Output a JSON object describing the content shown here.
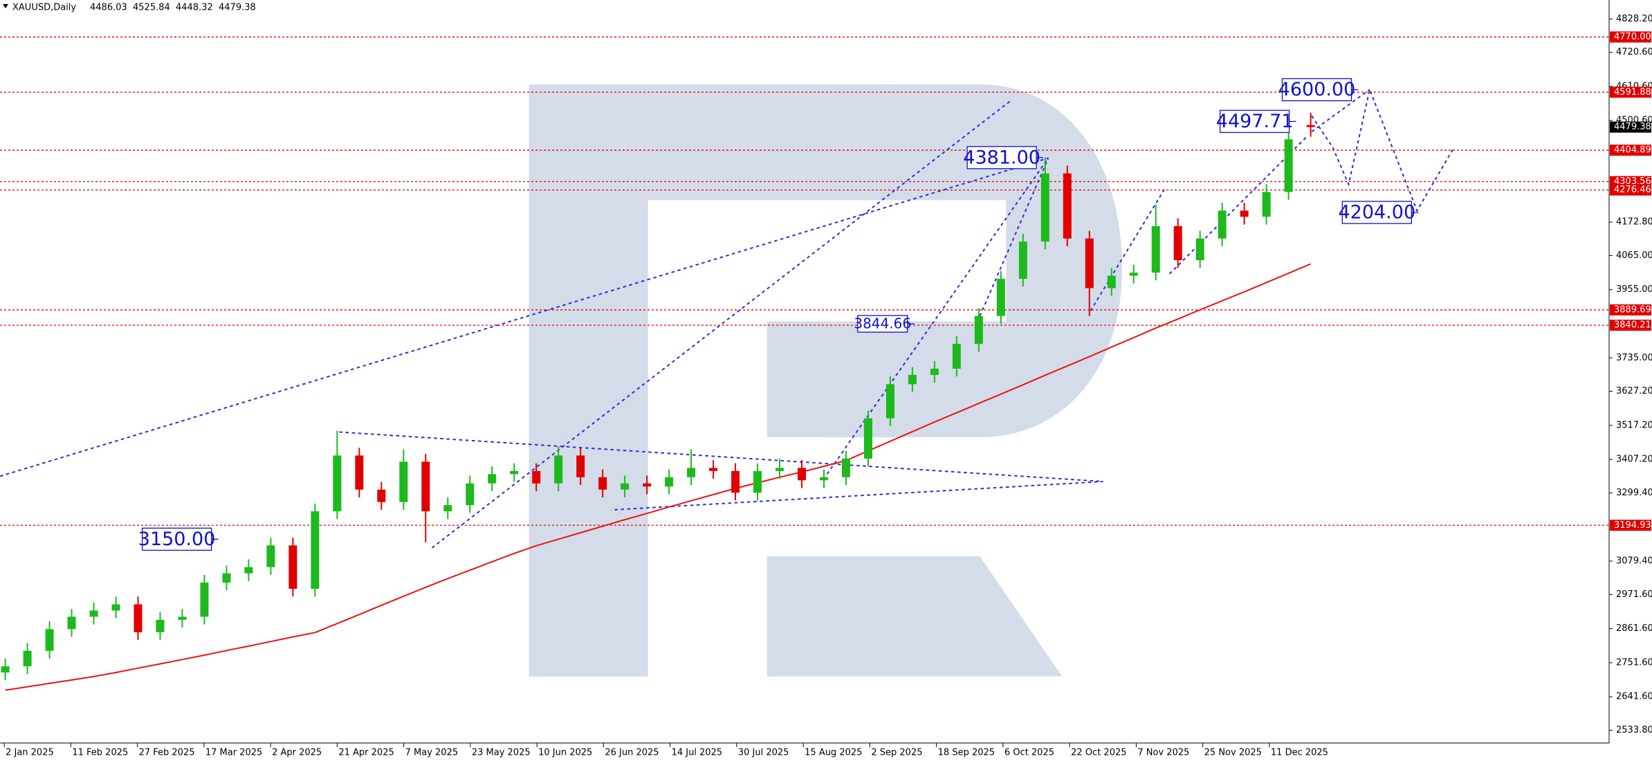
{
  "chart_data": {
    "type": "candlestick",
    "title": "XAUUSD,Daily",
    "categories": [
      "2 Jan 2025",
      "11 Feb 2025",
      "27 Feb 2025",
      "17 Mar 2025",
      "2 Apr 2025",
      "21 Apr 2025",
      "7 May 2025",
      "23 May 2025",
      "10 Jun 2025",
      "26 Jun 2025",
      "14 Jul 2025",
      "30 Jul 2025",
      "15 Aug 2025",
      "2 Sep 2025",
      "18 Sep 2025",
      "6 Oct 2025",
      "22 Oct 2025",
      "7 Nov 2025",
      "25 Nov 2025",
      "11 Dec 2025"
    ],
    "ohlc": [
      [
        2720,
        2765,
        2695,
        2740
      ],
      [
        2740,
        2815,
        2715,
        2790
      ],
      [
        2790,
        2885,
        2765,
        2860
      ],
      [
        2860,
        2925,
        2835,
        2900
      ],
      [
        2900,
        2945,
        2875,
        2920
      ],
      [
        2920,
        2965,
        2895,
        2940
      ],
      [
        2940,
        2965,
        2825,
        2850
      ],
      [
        2850,
        2915,
        2825,
        2890
      ],
      [
        2890,
        2925,
        2865,
        2900
      ],
      [
        2900,
        3035,
        2875,
        3010
      ],
      [
        3010,
        3065,
        2985,
        3040
      ],
      [
        3040,
        3085,
        3015,
        3060
      ],
      [
        3060,
        3155,
        3035,
        3130
      ],
      [
        3130,
        3155,
        2965,
        2990
      ],
      [
        2990,
        3265,
        2965,
        3240
      ],
      [
        3240,
        3500,
        3215,
        3420
      ],
      [
        3420,
        3445,
        3285,
        3310
      ],
      [
        3310,
        3335,
        3245,
        3270
      ],
      [
        3270,
        3440,
        3245,
        3400
      ],
      [
        3400,
        3425,
        3140,
        3240
      ],
      [
        3240,
        3285,
        3215,
        3260
      ],
      [
        3260,
        3355,
        3235,
        3330
      ],
      [
        3330,
        3385,
        3305,
        3360
      ],
      [
        3360,
        3395,
        3335,
        3370
      ],
      [
        3370,
        3395,
        3305,
        3330
      ],
      [
        3330,
        3450,
        3305,
        3420
      ],
      [
        3420,
        3445,
        3325,
        3350
      ],
      [
        3350,
        3375,
        3285,
        3310
      ],
      [
        3310,
        3355,
        3285,
        3330
      ],
      [
        3330,
        3355,
        3295,
        3320
      ],
      [
        3320,
        3375,
        3295,
        3350
      ],
      [
        3350,
        3440,
        3325,
        3380
      ],
      [
        3380,
        3405,
        3345,
        3370
      ],
      [
        3370,
        3395,
        3275,
        3300
      ],
      [
        3300,
        3395,
        3275,
        3370
      ],
      [
        3370,
        3410,
        3345,
        3380
      ],
      [
        3380,
        3405,
        3315,
        3340
      ],
      [
        3340,
        3375,
        3315,
        3350
      ],
      [
        3350,
        3435,
        3325,
        3410
      ],
      [
        3410,
        3565,
        3385,
        3540
      ],
      [
        3540,
        3675,
        3515,
        3650
      ],
      [
        3650,
        3705,
        3625,
        3680
      ],
      [
        3680,
        3725,
        3655,
        3700
      ],
      [
        3700,
        3805,
        3675,
        3780
      ],
      [
        3780,
        3895,
        3755,
        3870
      ],
      [
        3870,
        4015,
        3845,
        3990
      ],
      [
        3990,
        4135,
        3965,
        4110
      ],
      [
        4110,
        4381,
        4085,
        4330
      ],
      [
        4330,
        4355,
        4095,
        4120
      ],
      [
        4120,
        4145,
        3870,
        3960
      ],
      [
        3960,
        4025,
        3935,
        4000
      ],
      [
        4000,
        4035,
        3975,
        4010
      ],
      [
        4010,
        4230,
        3985,
        4160
      ],
      [
        4160,
        4185,
        4025,
        4050
      ],
      [
        4050,
        4145,
        4025,
        4120
      ],
      [
        4120,
        4235,
        4095,
        4210
      ],
      [
        4210,
        4235,
        4165,
        4190
      ],
      [
        4190,
        4295,
        4165,
        4270
      ],
      [
        4270,
        4465,
        4245,
        4440
      ],
      [
        4486.03,
        4525.84,
        4448.32,
        4479.38
      ]
    ],
    "ma": [
      2663,
      2674,
      2685,
      2696,
      2707,
      2720,
      2734,
      2748,
      2762,
      2776,
      2791,
      2805,
      2820,
      2835,
      2849,
      2878,
      2907,
      2937,
      2966,
      2995,
      3023,
      3050,
      3077,
      3104,
      3129,
      3150,
      3171,
      3192,
      3213,
      3233,
      3254,
      3274,
      3294,
      3314,
      3332,
      3350,
      3367,
      3385,
      3404,
      3435,
      3466,
      3497,
      3528,
      3558,
      3588,
      3618,
      3648,
      3679,
      3709,
      3739,
      3770,
      3800,
      3831,
      3860,
      3890,
      3919,
      3948,
      3978,
      4008,
      4038
    ],
    "up_color": "#1db91d",
    "down_color": "#e00000",
    "ma_color": "#ee1111",
    "level_color": "#e00000",
    "annotation_color": "#1010d0",
    "ylim": [
      2492.6,
      4889.3
    ],
    "yticks": [
      {
        "value": 4828.2,
        "label": "4828.20"
      },
      {
        "value": 4720.6,
        "label": "4720.60"
      },
      {
        "value": 4610.6,
        "label": "4610.60"
      },
      {
        "value": 4500.6,
        "label": "4500.60"
      },
      {
        "value": 4172.8,
        "label": "4172.80"
      },
      {
        "value": 4065,
        "label": "4065.00"
      },
      {
        "value": 3955,
        "label": "3955.00"
      },
      {
        "value": 3735,
        "label": "3735.00"
      },
      {
        "value": 3627.2,
        "label": "3627.20"
      },
      {
        "value": 3517.2,
        "label": "3517.20"
      },
      {
        "value": 3407.2,
        "label": "3407.20"
      },
      {
        "value": 3299.4,
        "label": "3299.40"
      },
      {
        "value": 3079.4,
        "label": "3079.40"
      },
      {
        "value": 2971.6,
        "label": "2971.60"
      },
      {
        "value": 2861.6,
        "label": "2861.60"
      },
      {
        "value": 2751.6,
        "label": "2751.60"
      },
      {
        "value": 2641.6,
        "label": "2641.60"
      },
      {
        "value": 2533.8,
        "label": "2533.80"
      }
    ],
    "levels": [
      {
        "value": 4770,
        "label": "4770.00"
      },
      {
        "value": 4591.88,
        "label": "4591.88"
      },
      {
        "value": 4404.89,
        "label": "4404.89"
      },
      {
        "value": 4303.56,
        "label": "4303.56"
      },
      {
        "value": 4276.46,
        "label": "4276.46"
      },
      {
        "value": 3889.69,
        "label": "3889.69"
      },
      {
        "value": 3840.21,
        "label": "3840.21"
      },
      {
        "value": 3194.93,
        "label": "3194.93"
      }
    ],
    "current_price": 4479.38,
    "annotations": [
      {
        "value": 4600,
        "label": "4600.00"
      },
      {
        "value": 4497.71,
        "label": "4497.71"
      },
      {
        "value": 4381,
        "label": "4381.00"
      },
      {
        "value": 4204,
        "label": "4204.00"
      },
      {
        "value": 3844.66,
        "label": "3844.66"
      },
      {
        "value": 3150,
        "label": "3150.00"
      }
    ]
  }
}
